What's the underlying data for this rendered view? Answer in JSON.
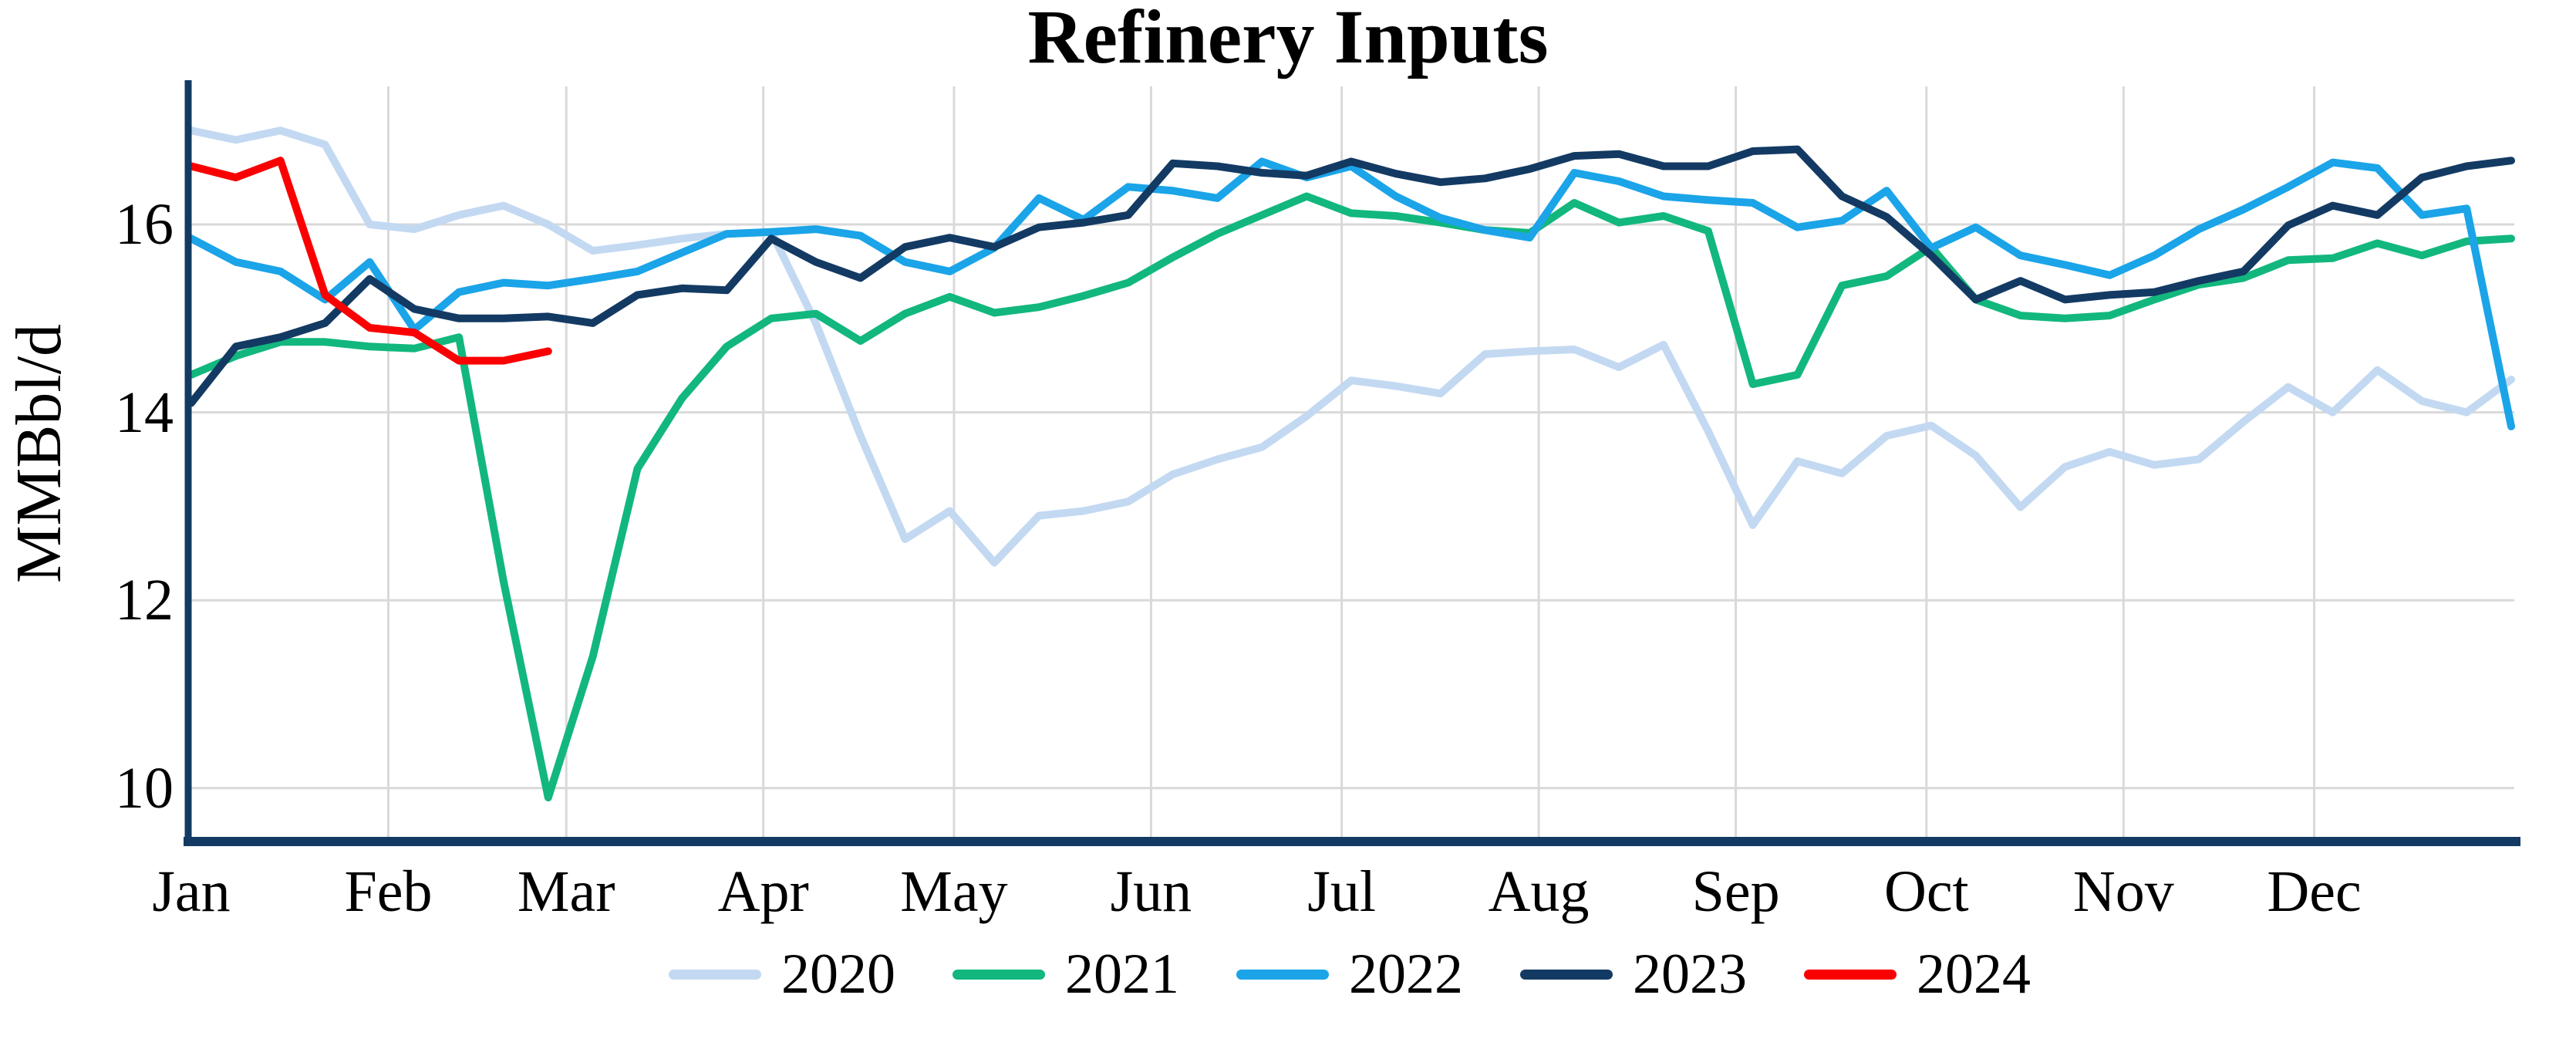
{
  "title": "Refinery Inputs",
  "y_axis": {
    "label": "MMBbl/d"
  },
  "colors": {
    "axis": "#133a63",
    "gridline": "#d9d9d9",
    "background": "#ffffff",
    "text": "#000000"
  },
  "chart_data": {
    "type": "line",
    "title": "Refinery Inputs",
    "xlabel": "",
    "ylabel": "MMBbl/d",
    "x_tick_labels": [
      "Jan",
      "Feb",
      "Mar",
      "Apr",
      "May",
      "Jun",
      "Jul",
      "Aug",
      "Sep",
      "Oct",
      "Nov",
      "Dec"
    ],
    "y_ticks": [
      16,
      14,
      12,
      10
    ],
    "ylim": [
      9.4,
      17.4
    ],
    "x_unit": "weekly values, Jan through Dec",
    "grid": true,
    "legend_position": "bottom",
    "series": [
      {
        "name": "2020",
        "color": "#c3d9f2",
        "values": [
          17.0,
          16.9,
          17.0,
          16.85,
          16.0,
          15.95,
          16.1,
          16.2,
          16.0,
          15.72,
          15.78,
          15.85,
          15.9,
          15.92,
          14.95,
          13.75,
          12.65,
          12.95,
          12.4,
          12.9,
          12.95,
          13.05,
          13.34,
          13.5,
          13.63,
          13.96,
          14.34,
          14.28,
          14.2,
          14.62,
          14.65,
          14.67,
          14.48,
          14.72,
          13.8,
          12.8,
          13.48,
          13.35,
          13.75,
          13.86,
          13.54,
          12.99,
          13.42,
          13.58,
          13.44,
          13.5,
          13.9,
          14.27,
          14.0,
          14.45,
          14.12,
          14.0,
          14.35
        ]
      },
      {
        "name": "2021",
        "color": "#12b77e",
        "values": [
          14.4,
          14.6,
          14.75,
          14.75,
          14.7,
          14.68,
          14.8,
          12.2,
          9.9,
          11.4,
          13.4,
          14.15,
          14.7,
          15.0,
          15.05,
          14.76,
          15.05,
          15.23,
          15.06,
          15.12,
          15.24,
          15.38,
          15.65,
          15.9,
          16.1,
          16.3,
          16.12,
          16.09,
          16.02,
          15.94,
          15.91,
          16.23,
          16.02,
          16.09,
          15.93,
          14.3,
          14.4,
          15.35,
          15.45,
          15.76,
          15.2,
          15.03,
          15.0,
          15.03,
          15.2,
          15.36,
          15.43,
          15.62,
          15.64,
          15.8,
          15.67,
          15.82,
          15.85
        ]
      },
      {
        "name": "2022",
        "color": "#1ba4e8",
        "values": [
          15.85,
          15.6,
          15.5,
          15.2,
          15.6,
          14.88,
          15.28,
          15.38,
          15.35,
          15.42,
          15.5,
          15.7,
          15.9,
          15.92,
          15.95,
          15.88,
          15.6,
          15.5,
          15.75,
          16.28,
          16.05,
          16.4,
          16.36,
          16.28,
          16.67,
          16.5,
          16.62,
          16.3,
          16.07,
          15.94,
          15.86,
          16.55,
          16.46,
          16.3,
          16.26,
          16.23,
          15.97,
          16.04,
          16.36,
          15.75,
          15.97,
          15.67,
          15.57,
          15.46,
          15.67,
          15.95,
          16.16,
          16.4,
          16.66,
          16.6,
          16.1,
          16.17,
          13.85
        ]
      },
      {
        "name": "2023",
        "color": "#133a63",
        "values": [
          14.1,
          14.7,
          14.8,
          14.95,
          15.42,
          15.1,
          15.0,
          15.0,
          15.02,
          14.95,
          15.25,
          15.32,
          15.3,
          15.85,
          15.6,
          15.43,
          15.76,
          15.86,
          15.76,
          15.97,
          16.02,
          16.1,
          16.65,
          16.62,
          16.55,
          16.52,
          16.67,
          16.54,
          16.45,
          16.49,
          16.59,
          16.73,
          16.75,
          16.62,
          16.62,
          16.78,
          16.8,
          16.3,
          16.08,
          15.67,
          15.2,
          15.4,
          15.2,
          15.25,
          15.28,
          15.4,
          15.5,
          15.99,
          16.2,
          16.1,
          16.5,
          16.62,
          16.68
        ]
      },
      {
        "name": "2024",
        "color": "#fa0000",
        "values": [
          16.62,
          16.5,
          16.68,
          15.25,
          14.9,
          14.85,
          14.55,
          14.55,
          14.65
        ]
      }
    ]
  }
}
